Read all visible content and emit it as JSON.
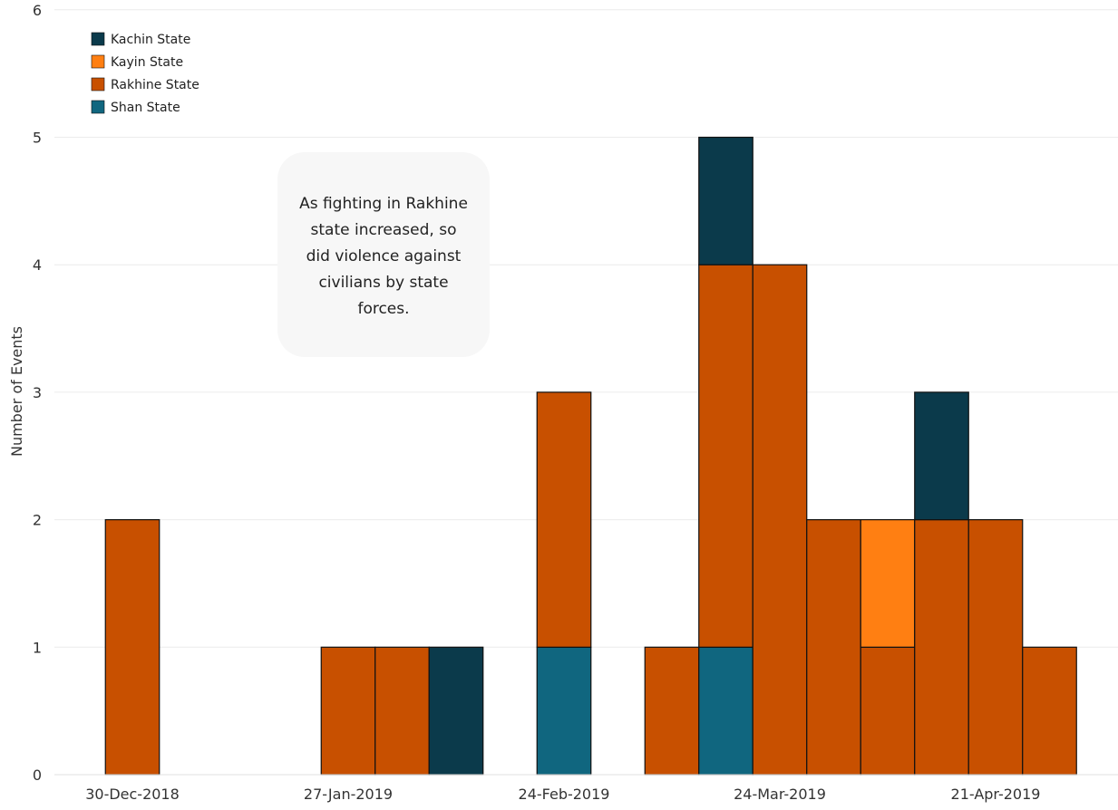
{
  "chart_data": {
    "type": "bar",
    "stacked": true,
    "xlabel": "",
    "ylabel": "Number of Events",
    "ylim": [
      0,
      6
    ],
    "y_ticks": [
      "0",
      "1",
      "2",
      "3",
      "4",
      "5",
      "6"
    ],
    "x_tick_labels": [
      "30-Dec-2018",
      "27-Jan-2019",
      "24-Feb-2019",
      "24-Mar-2019",
      "21-Apr-2019"
    ],
    "bar_width_days": 7,
    "grid": true,
    "legend_position": "top-left",
    "colors": {
      "Kachin State": "#0b3a4b",
      "Kayin State": "#ff7f12",
      "Rakhine State": "#c85000",
      "Shan State": "#10667f"
    },
    "categories": [
      "30-Dec-2018",
      "27-Jan-2019",
      "3-Feb-2019",
      "10-Feb-2019",
      "24-Feb-2019",
      "10-Mar-2019",
      "17-Mar-2019",
      "24-Mar-2019",
      "31-Mar-2019",
      "7-Apr-2019",
      "14-Apr-2019",
      "21-Apr-2019",
      "28-Apr-2019"
    ],
    "series": [
      {
        "name": "Shan State",
        "values": [
          0,
          0,
          0,
          0,
          1,
          0,
          1,
          0,
          0,
          0,
          0,
          0,
          0
        ]
      },
      {
        "name": "Rakhine State",
        "values": [
          2,
          1,
          1,
          0,
          2,
          1,
          3,
          4,
          2,
          1,
          2,
          2,
          1
        ]
      },
      {
        "name": "Kayin State",
        "values": [
          0,
          0,
          0,
          0,
          0,
          0,
          0,
          0,
          0,
          1,
          0,
          0,
          0
        ]
      },
      {
        "name": "Kachin State",
        "values": [
          0,
          0,
          0,
          1,
          0,
          0,
          1,
          0,
          0,
          0,
          1,
          0,
          0
        ]
      }
    ],
    "legend": [
      "Kachin State",
      "Kayin State",
      "Rakhine State",
      "Shan State"
    ],
    "annotation": {
      "lines": [
        "As fighting in Rakhine",
        "state increased, so",
        "did violence against",
        "civilians by state",
        "forces."
      ]
    }
  }
}
